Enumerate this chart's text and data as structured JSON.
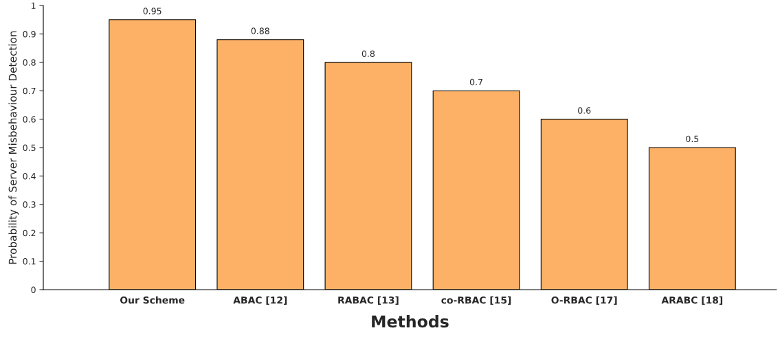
{
  "chart_data": {
    "type": "bar",
    "xlabel": "Methods",
    "ylabel": "Probability of Server Misbehaviour Detection",
    "categories": [
      "Our Scheme",
      "ABAC [12]",
      "RABAC [13]",
      "co-RBAC [15]",
      "O-RBAC [17]",
      "ARABC [18]"
    ],
    "values": [
      0.95,
      0.88,
      0.8,
      0.7,
      0.6,
      0.5
    ],
    "color": "#fdb166",
    "ylim": [
      0,
      1
    ],
    "yticks": [
      0,
      0.1,
      0.2,
      0.3,
      0.4,
      0.5,
      0.6,
      0.7,
      0.8,
      0.9,
      1
    ],
    "data_labels": true,
    "grid": false,
    "legend": false
  }
}
